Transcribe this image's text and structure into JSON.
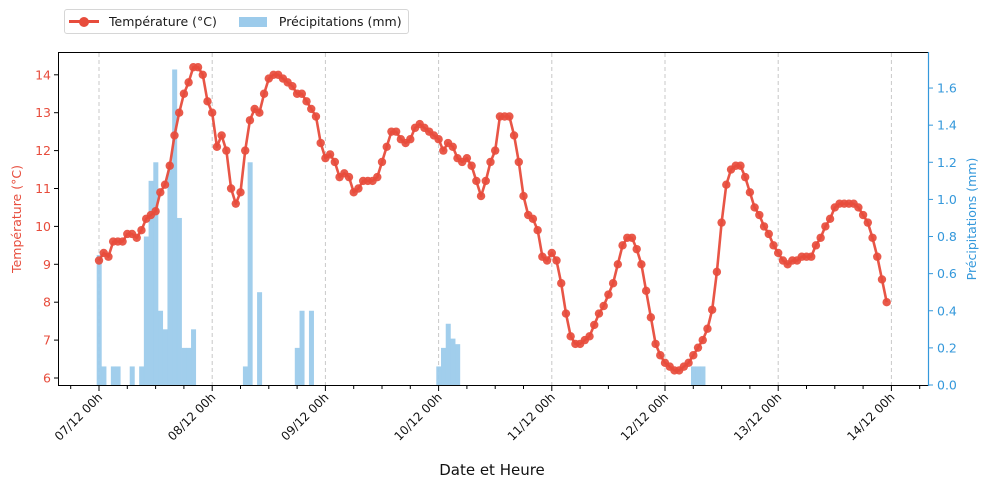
{
  "legend": {
    "temperature_label": "Température (°C)",
    "precip_label": "Précipitations (mm)"
  },
  "colors": {
    "temperature": "#e74c3c",
    "precipitation": "#9ccbeb",
    "precip_axis": "#3498db",
    "grid": "#c8c8c8"
  },
  "chart_data": {
    "type": "line+bar",
    "title": "",
    "xlabel": "Date et Heure",
    "ylabel": "Température (°C)",
    "y2label": "Précipitations (mm)",
    "x_ticks": [
      "07/12 00h",
      "08/12 00h",
      "09/12 00h",
      "10/12 00h",
      "11/12 00h",
      "12/12 00h",
      "13/12 00h",
      "14/12 00h"
    ],
    "y_ticks": [
      6,
      7,
      8,
      9,
      10,
      11,
      12,
      13,
      14
    ],
    "y2_ticks": [
      "0.0",
      "0.2",
      "0.4",
      "0.6",
      "0.8",
      "1.0",
      "1.2",
      "1.4",
      "1.6"
    ],
    "ylim": [
      5.8,
      14.6
    ],
    "y2lim": [
      0,
      1.78
    ],
    "grid": "vertical dashed at day boundaries",
    "legend_position": "top-left outside",
    "x_unit": "hours since 07/12 00h",
    "series": [
      {
        "name": "Température (°C)",
        "axis": "left",
        "type": "line",
        "x": [
          0,
          1,
          2,
          3,
          4,
          5,
          6,
          7,
          8,
          9,
          10,
          11,
          12,
          13,
          14,
          15,
          16,
          17,
          18,
          19,
          20,
          21,
          22,
          23,
          24,
          25,
          26,
          27,
          28,
          29,
          30,
          31,
          32,
          33,
          34,
          35,
          36,
          37,
          38,
          39,
          40,
          41,
          42,
          43,
          44,
          45,
          46,
          47,
          48,
          49,
          50,
          51,
          52,
          53,
          54,
          55,
          56,
          57,
          58,
          59,
          60,
          61,
          62,
          63,
          64,
          65,
          66,
          67,
          68,
          69,
          70,
          71,
          72,
          73,
          74,
          75,
          76,
          77,
          78,
          79,
          80,
          81,
          82,
          83,
          84,
          85,
          86,
          87,
          88,
          89,
          90,
          91,
          92,
          93,
          94,
          95,
          96,
          97,
          98,
          99,
          100,
          101,
          102,
          103,
          104,
          105,
          106,
          107,
          108,
          109,
          110,
          111,
          112,
          113,
          114,
          115,
          116,
          117,
          118,
          119,
          120,
          121,
          122,
          123,
          124,
          125,
          126,
          127,
          128,
          129,
          130,
          131,
          132,
          133,
          134,
          135,
          136,
          137,
          138,
          139,
          140,
          141,
          142,
          143,
          144,
          145,
          146,
          147,
          148,
          149,
          150,
          151,
          152,
          153,
          154,
          155,
          156,
          157,
          158,
          159,
          160,
          161,
          162,
          163,
          164,
          165,
          166,
          167
        ],
        "values": [
          9.1,
          9.3,
          9.2,
          9.6,
          9.6,
          9.6,
          9.8,
          9.8,
          9.7,
          9.9,
          10.2,
          10.3,
          10.4,
          10.9,
          11.1,
          11.6,
          12.4,
          13.0,
          13.5,
          13.8,
          14.2,
          14.2,
          14.0,
          13.3,
          13.0,
          12.1,
          12.4,
          12.0,
          11.0,
          10.6,
          10.9,
          12.0,
          12.8,
          13.1,
          13.0,
          13.5,
          13.9,
          14.0,
          14.0,
          13.9,
          13.8,
          13.7,
          13.5,
          13.5,
          13.3,
          13.1,
          12.9,
          12.2,
          11.8,
          11.9,
          11.7,
          11.3,
          11.4,
          11.3,
          10.9,
          11.0,
          11.2,
          11.2,
          11.2,
          11.3,
          11.7,
          12.1,
          12.5,
          12.5,
          12.3,
          12.2,
          12.3,
          12.6,
          12.7,
          12.6,
          12.5,
          12.4,
          12.3,
          12.0,
          12.2,
          12.1,
          11.8,
          11.7,
          11.8,
          11.6,
          11.2,
          10.8,
          11.2,
          11.7,
          12.0,
          12.9,
          12.9,
          12.9,
          12.4,
          11.7,
          10.8,
          10.3,
          10.2,
          9.9,
          9.2,
          9.1,
          9.3,
          9.1,
          8.5,
          7.7,
          7.1,
          6.9,
          6.9,
          7.0,
          7.1,
          7.4,
          7.7,
          7.9,
          8.2,
          8.5,
          9.0,
          9.5,
          9.7,
          9.7,
          9.4,
          9.0,
          8.3,
          7.6,
          6.9,
          6.6,
          6.4,
          6.3,
          6.2,
          6.2,
          6.3,
          6.4,
          6.6,
          6.8,
          7.0,
          7.3,
          7.8,
          8.8,
          10.1,
          11.1,
          11.5,
          11.6,
          11.6,
          11.3,
          10.9,
          10.5,
          10.3,
          10.0,
          9.8,
          9.5,
          9.3,
          9.1,
          9.0,
          9.1,
          9.1,
          9.2,
          9.2,
          9.2,
          9.5,
          9.7,
          10.0,
          10.2,
          10.5,
          10.6,
          10.6,
          10.6,
          10.6,
          10.5,
          10.3,
          10.1,
          9.7,
          9.2,
          8.6,
          8.0
        ]
      },
      {
        "name": "Précipitations (mm)",
        "axis": "right",
        "type": "bar",
        "x": [
          0,
          1,
          3,
          4,
          7,
          9,
          10,
          11,
          12,
          13,
          14,
          15,
          16,
          17,
          18,
          19,
          20,
          31,
          32,
          34,
          42,
          43,
          45,
          72,
          73,
          74,
          75,
          76,
          126,
          127,
          128
        ],
        "values": [
          0.7,
          0.1,
          0.1,
          0.1,
          0.1,
          0.1,
          0.8,
          1.1,
          1.2,
          0.4,
          0.3,
          1.2,
          1.7,
          0.9,
          0.2,
          0.2,
          0.3,
          0.1,
          1.2,
          0.5,
          0.2,
          0.4,
          0.4,
          0.1,
          0.2,
          0.33,
          0.25,
          0.22,
          0.1,
          0.1,
          0.1
        ]
      }
    ]
  }
}
